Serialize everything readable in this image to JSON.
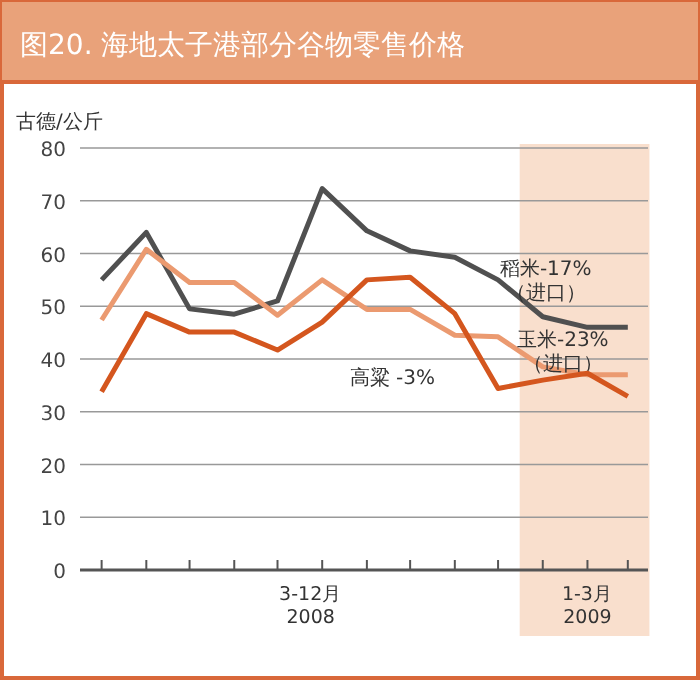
{
  "chart_data": {
    "type": "line",
    "title": "图20. 海地太子港部分谷物零售价格",
    "ylabel": "古德/公斤",
    "x": [
      "2008-03",
      "2008-04",
      "2008-05",
      "2008-06",
      "2008-07",
      "2008-08",
      "2008-09",
      "2008-10",
      "2008-11",
      "2008-12",
      "2009-01",
      "2009-02",
      "2009-03"
    ],
    "xlim": [
      "2008-02-15",
      "2009-03-15"
    ],
    "xticks": [
      {
        "value": "2008-03",
        "label": null
      },
      {
        "value": "2008-04",
        "label": null
      },
      {
        "value": "2008-05",
        "label": null
      },
      {
        "value": "2008-06",
        "label": null
      },
      {
        "value": "2008-07",
        "label": null
      },
      {
        "value": "2008-08",
        "label": null
      },
      {
        "value": "2008-09",
        "label": null
      },
      {
        "value": "2008-10",
        "label": null
      },
      {
        "value": "2008-11",
        "label": null
      },
      {
        "value": "2008-12",
        "label": null
      },
      {
        "value": "2009-01",
        "label": null
      },
      {
        "value": "2009-02",
        "label": null
      },
      {
        "value": "2009-03",
        "label": null
      },
      {
        "value": "2008-07-24",
        "label": "3-12月\n2008"
      },
      {
        "value": "2009-02-01",
        "label": "1-3月\n2009"
      }
    ],
    "ylim": [
      0,
      80
    ],
    "yticks": [
      0,
      10,
      20,
      30,
      40,
      50,
      60,
      70,
      80
    ],
    "grid": "y",
    "marker": "none",
    "line_style": "solid",
    "bands": [
      {
        "axis": "x",
        "from": "2008-12-16",
        "to": "2009-03-16",
        "color": "#f9dfcd"
      }
    ],
    "series": [
      {
        "name": "稻米-17%\n（进口）",
        "color": "#505050",
        "values": [
          55,
          64,
          49.5,
          48.5,
          51,
          72.3,
          64.3,
          60.5,
          59.3,
          55,
          48,
          46,
          46
        ]
      },
      {
        "name": "玉米-23%\n（进口）",
        "color": "#eb9a70",
        "values": [
          47.4,
          60.8,
          54.5,
          54.5,
          48.3,
          55,
          49.4,
          49.4,
          44.5,
          44.2,
          38.5,
          37,
          37
        ]
      },
      {
        "name": "高粱 -3%",
        "color": "#d4561e",
        "values": [
          33.8,
          48.6,
          45.1,
          45.1,
          41.7,
          47,
          55,
          55.5,
          48.6,
          34.4,
          36,
          37.3,
          32.9
        ]
      }
    ]
  }
}
